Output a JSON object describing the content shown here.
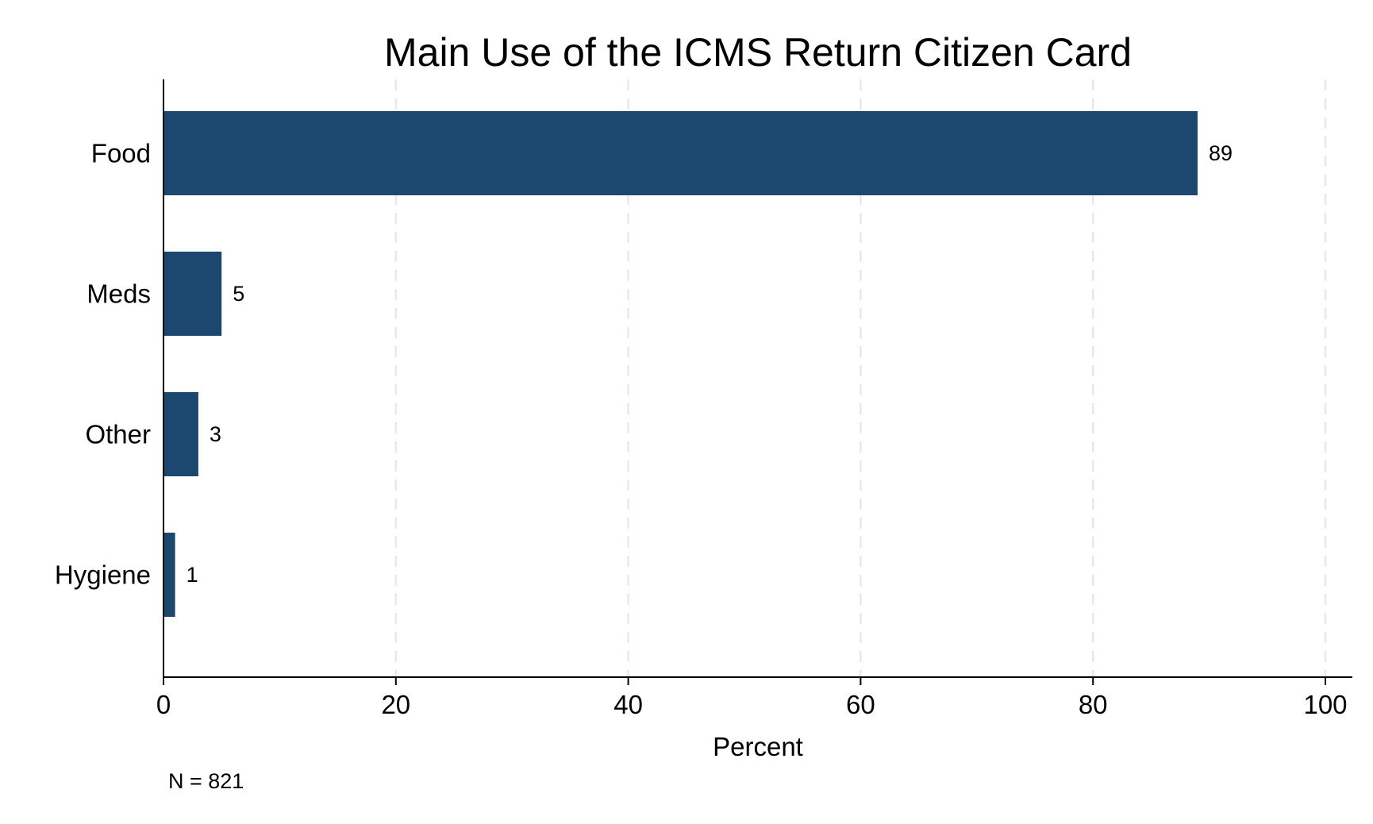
{
  "chart_data": {
    "type": "bar",
    "orientation": "horizontal",
    "title": "Main Use of the ICMS Return Citizen Card",
    "categories": [
      "Food",
      "Meds",
      "Other",
      "Hygiene"
    ],
    "values": [
      89,
      5,
      3,
      1
    ],
    "value_labels": [
      "89",
      "5",
      "3",
      "1"
    ],
    "xlabel": "Percent",
    "ylabel": "",
    "xlim": [
      0,
      100
    ],
    "xticks": [
      0,
      20,
      40,
      60,
      80,
      100
    ],
    "xtick_labels": [
      "0",
      "20",
      "40",
      "60",
      "80",
      "100"
    ],
    "grid": "vertical dashed",
    "legend": "none",
    "note": "N = 821",
    "colors": {
      "bar": "#1c4870",
      "grid": "#e8e8e8",
      "axis": "#000000"
    }
  }
}
